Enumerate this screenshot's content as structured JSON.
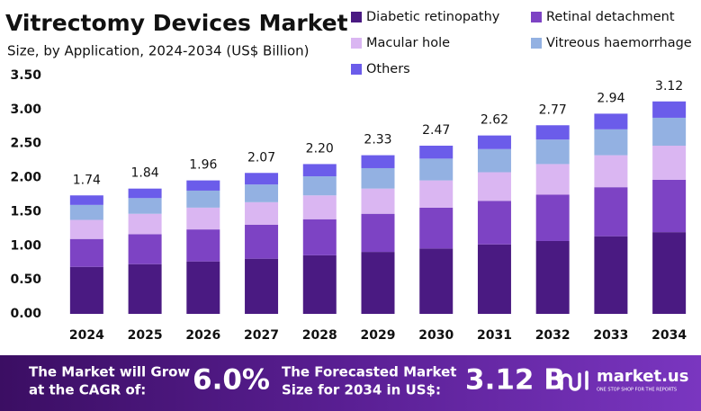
{
  "chart_data": {
    "type": "stacked-bar",
    "title": "Vitrectomy Devices Market",
    "subtitle": "Size, by Application, 2024-2034 (US$ Billion)",
    "categories": [
      "2024",
      "2025",
      "2026",
      "2027",
      "2028",
      "2029",
      "2030",
      "2031",
      "2032",
      "2033",
      "2034"
    ],
    "series": [
      {
        "name": "Diabetic retinopathy",
        "color": "#4a1a82",
        "values": [
          0.69,
          0.73,
          0.77,
          0.81,
          0.86,
          0.91,
          0.96,
          1.02,
          1.07,
          1.14,
          1.2
        ]
      },
      {
        "name": "Retinal detachment",
        "color": "#7d43c4",
        "values": [
          0.41,
          0.44,
          0.47,
          0.5,
          0.53,
          0.56,
          0.6,
          0.64,
          0.68,
          0.72,
          0.77
        ]
      },
      {
        "name": "Macular hole",
        "color": "#dab6f2",
        "values": [
          0.28,
          0.3,
          0.32,
          0.33,
          0.35,
          0.37,
          0.4,
          0.42,
          0.45,
          0.47,
          0.5
        ]
      },
      {
        "name": "Vitreous haemorrhage",
        "color": "#93b1e2",
        "values": [
          0.22,
          0.23,
          0.25,
          0.26,
          0.28,
          0.3,
          0.32,
          0.34,
          0.36,
          0.38,
          0.41
        ]
      },
      {
        "name": "Others",
        "color": "#6b5cea",
        "values": [
          0.14,
          0.14,
          0.15,
          0.17,
          0.18,
          0.19,
          0.19,
          0.2,
          0.21,
          0.23,
          0.24
        ]
      }
    ],
    "totals": {
      "values": [
        1.74,
        1.84,
        1.96,
        2.07,
        2.2,
        2.33,
        2.47,
        2.62,
        2.77,
        2.94,
        3.12
      ],
      "value_labels": [
        "1.74",
        "1.84",
        "1.96",
        "2.07",
        "2.20",
        "2.33",
        "2.47",
        "2.62",
        "2.77",
        "2.94",
        "3.12"
      ]
    },
    "ylim": [
      0,
      3.5
    ],
    "yticks": [
      {
        "value": 0,
        "label": "0.00"
      },
      {
        "value": 0.5,
        "label": "0.50"
      },
      {
        "value": 1,
        "label": "1.00"
      },
      {
        "value": 1.5,
        "label": "1.50"
      },
      {
        "value": 2,
        "label": "2.00"
      },
      {
        "value": 2.5,
        "label": "2.50"
      },
      {
        "value": 3,
        "label": "3.00"
      },
      {
        "value": 3.5,
        "label": "3.50"
      }
    ],
    "grid": false
  },
  "banner": {
    "cagr_text": [
      "The Market will Grow",
      "at the CAGR of:"
    ],
    "cagr": "6.0%",
    "forecast_text": [
      "The Forecasted Market",
      "Size for 2034 in US$:"
    ],
    "forecast": "3.12 B",
    "brand": "market.us",
    "tagline": "ONE STOP SHOP FOR THE REPORTS"
  }
}
